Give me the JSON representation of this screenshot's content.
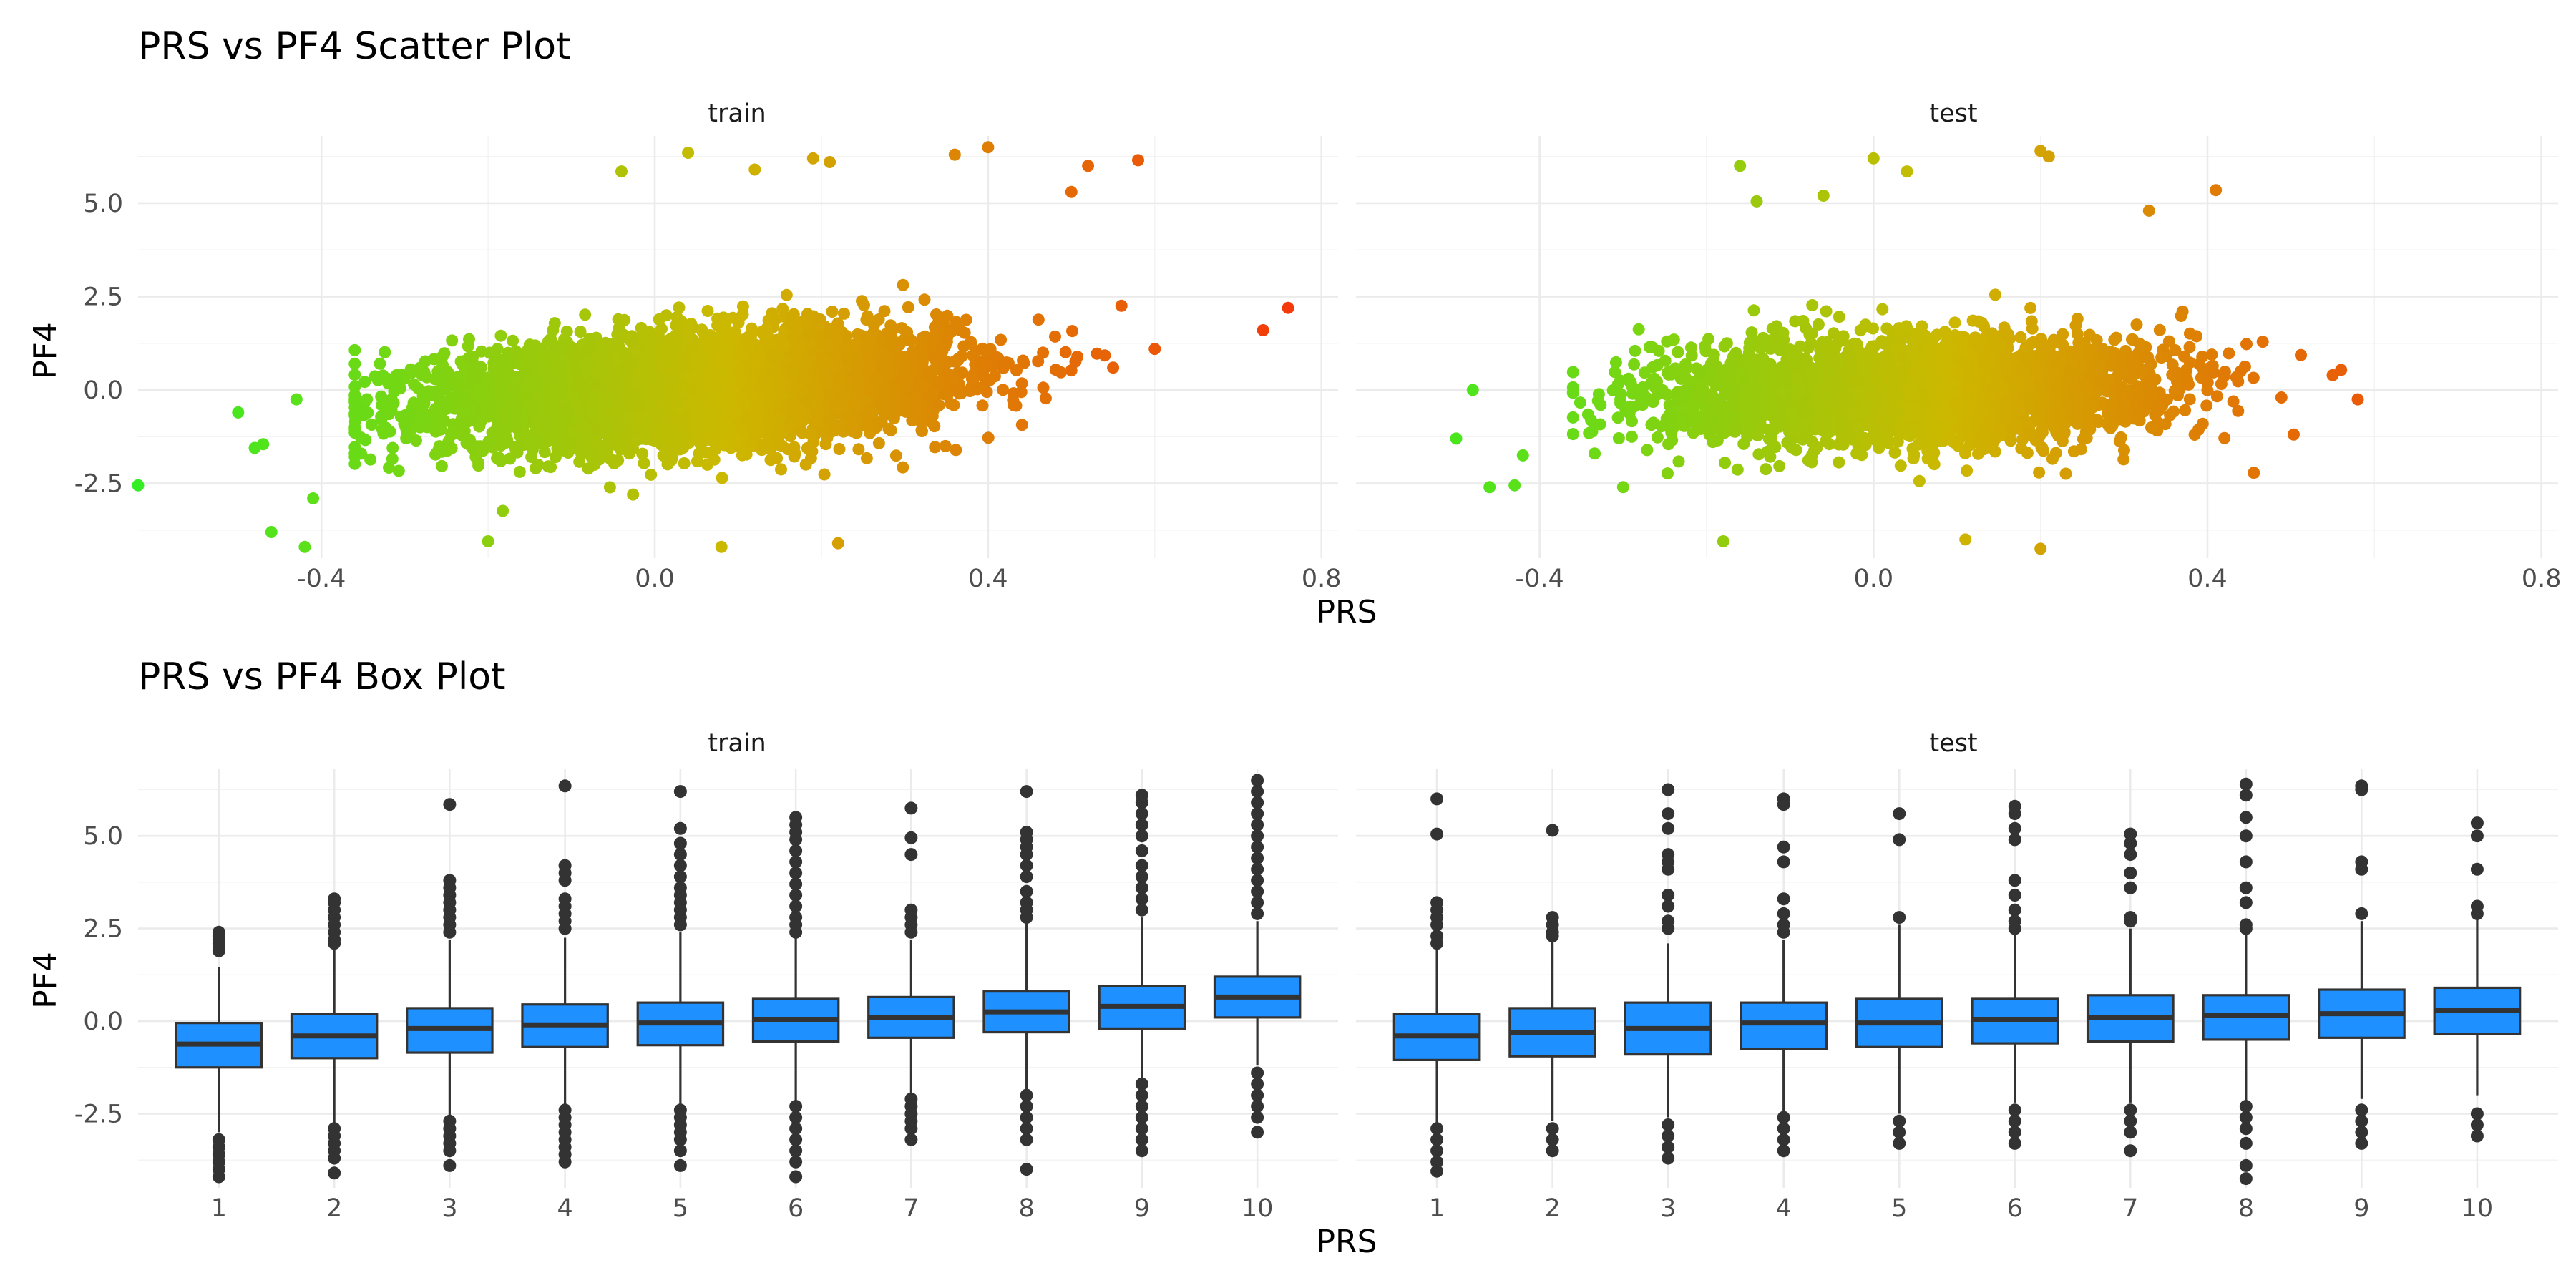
{
  "chart_data": [
    {
      "type": "scatter",
      "title": "PRS vs PF4 Scatter Plot",
      "xlabel": "PRS",
      "ylabel": "PF4",
      "facets": [
        "train",
        "test"
      ],
      "xlim": [
        -0.62,
        0.82
      ],
      "ylim": [
        -4.5,
        6.8
      ],
      "x_ticks": [
        "-0.4",
        "0.0",
        "0.4",
        "0.8"
      ],
      "y_ticks": [
        "-2.5",
        "0.0",
        "2.5",
        "5.0"
      ],
      "color_gradient": [
        "#33ee22",
        "#cdb800",
        "#f5350a"
      ],
      "grid": true,
      "legend": "none",
      "series": [
        {
          "facet": "train",
          "cloud": {
            "x_mean": 0.05,
            "x_sd": 0.15,
            "y_intercept": 0.05,
            "y_slope": 1.6,
            "y_sd": 0.95,
            "n": 5200
          },
          "extreme_points": [
            [
              -0.62,
              -2.55
            ],
            [
              -0.5,
              -0.6
            ],
            [
              -0.48,
              -1.55
            ],
            [
              -0.47,
              -1.45
            ],
            [
              -0.46,
              -3.8
            ],
            [
              -0.43,
              -0.25
            ],
            [
              -0.42,
              -4.2
            ],
            [
              -0.41,
              -2.9
            ],
            [
              0.76,
              2.2
            ],
            [
              0.73,
              1.6
            ],
            [
              0.6,
              1.1
            ],
            [
              0.58,
              6.15
            ],
            [
              0.52,
              6.0
            ],
            [
              0.5,
              5.3
            ],
            [
              0.4,
              6.5
            ],
            [
              0.36,
              6.3
            ],
            [
              -0.04,
              5.85
            ],
            [
              0.04,
              6.35
            ],
            [
              0.19,
              6.2
            ],
            [
              0.21,
              6.1
            ],
            [
              0.12,
              5.9
            ],
            [
              0.55,
              0.6
            ],
            [
              0.08,
              -4.2
            ],
            [
              0.22,
              -4.1
            ],
            [
              -0.2,
              -4.05
            ]
          ]
        },
        {
          "facet": "test",
          "cloud": {
            "x_mean": 0.05,
            "x_sd": 0.15,
            "y_intercept": 0.0,
            "y_slope": 0.5,
            "y_sd": 0.95,
            "n": 3000
          },
          "extreme_points": [
            [
              -0.5,
              -1.3
            ],
            [
              -0.48,
              0.0
            ],
            [
              -0.46,
              -2.6
            ],
            [
              -0.43,
              -2.55
            ],
            [
              -0.42,
              -1.75
            ],
            [
              -0.16,
              6.0
            ],
            [
              -0.14,
              5.05
            ],
            [
              0.2,
              6.4
            ],
            [
              0.21,
              6.25
            ],
            [
              0.0,
              6.2
            ],
            [
              0.41,
              5.35
            ],
            [
              0.58,
              -0.25
            ],
            [
              0.55,
              0.4
            ],
            [
              0.04,
              5.85
            ],
            [
              -0.06,
              5.2
            ],
            [
              0.2,
              -4.25
            ],
            [
              -0.18,
              -4.05
            ],
            [
              -0.3,
              -2.6
            ],
            [
              0.33,
              4.8
            ],
            [
              0.11,
              -4.0
            ]
          ]
        }
      ]
    },
    {
      "type": "box",
      "title": "PRS vs PF4 Box Plot",
      "xlabel": "PRS",
      "ylabel": "PF4",
      "facets": [
        "train",
        "test"
      ],
      "categories": [
        "1",
        "2",
        "3",
        "4",
        "5",
        "6",
        "7",
        "8",
        "9",
        "10"
      ],
      "ylim": [
        -4.5,
        6.8
      ],
      "y_ticks": [
        "-2.5",
        "0.0",
        "2.5",
        "5.0"
      ],
      "box_color": "#1e90ff",
      "series": [
        {
          "facet": "train",
          "boxes": [
            {
              "lower": -1.3,
              "q1": -1.25,
              "median": -0.62,
              "q3": -0.05,
              "upper": 1.45,
              "whisker_low": -3.0,
              "outliers": [
                2.4,
                2.3,
                2.2,
                2.1,
                2.0,
                1.9,
                -3.2,
                -3.4,
                -3.6,
                -3.8,
                -4.0,
                -4.2
              ]
            },
            {
              "q1": -1.0,
              "median": -0.4,
              "q3": 0.2,
              "upper": 1.95,
              "whisker_low": -2.8,
              "outliers": [
                3.3,
                3.2,
                3.0,
                2.8,
                2.6,
                2.4,
                2.2,
                2.1,
                -2.9,
                -3.1,
                -3.3,
                -3.5,
                -3.7,
                -4.1
              ]
            },
            {
              "q1": -0.85,
              "median": -0.2,
              "q3": 0.35,
              "upper": 2.2,
              "whisker_low": -2.6,
              "outliers": [
                5.85,
                3.8,
                3.6,
                3.4,
                3.2,
                3.0,
                2.8,
                2.6,
                2.4,
                -2.7,
                -2.9,
                -3.1,
                -3.3,
                -3.5,
                -3.9
              ]
            },
            {
              "q1": -0.7,
              "median": -0.1,
              "q3": 0.45,
              "upper": 2.25,
              "whisker_low": -2.3,
              "outliers": [
                6.35,
                4.2,
                4.0,
                3.8,
                3.3,
                3.1,
                2.9,
                2.7,
                2.5,
                -2.4,
                -2.6,
                -2.8,
                -3.0,
                -3.2,
                -3.4,
                -3.6,
                -3.8
              ]
            },
            {
              "q1": -0.65,
              "median": -0.05,
              "q3": 0.5,
              "upper": 2.4,
              "whisker_low": -2.3,
              "outliers": [
                6.2,
                5.2,
                4.8,
                4.5,
                4.2,
                3.9,
                3.6,
                3.4,
                3.2,
                3.0,
                2.8,
                2.6,
                -2.4,
                -2.6,
                -2.8,
                -3.0,
                -3.2,
                -3.5,
                -3.9
              ]
            },
            {
              "q1": -0.55,
              "median": 0.05,
              "q3": 0.6,
              "upper": 2.3,
              "whisker_low": -2.2,
              "outliers": [
                5.5,
                5.3,
                5.1,
                4.9,
                4.6,
                4.3,
                4.0,
                3.7,
                3.4,
                3.1,
                2.8,
                2.6,
                2.4,
                -2.3,
                -2.6,
                -2.9,
                -3.2,
                -3.5,
                -3.8,
                -4.2
              ]
            },
            {
              "q1": -0.45,
              "median": 0.1,
              "q3": 0.65,
              "upper": 2.2,
              "whisker_low": -2.0,
              "outliers": [
                5.75,
                4.95,
                4.5,
                3.0,
                2.8,
                2.6,
                2.4,
                -2.1,
                -2.3,
                -2.5,
                -2.7,
                -2.9,
                -3.2
              ]
            },
            {
              "q1": -0.3,
              "median": 0.25,
              "q3": 0.8,
              "upper": 2.7,
              "whisker_low": -1.95,
              "outliers": [
                6.2,
                5.1,
                4.9,
                4.7,
                4.5,
                4.2,
                3.9,
                3.5,
                3.2,
                3.0,
                2.8,
                -2.0,
                -2.3,
                -2.6,
                -2.9,
                -3.2,
                -4.0
              ]
            },
            {
              "q1": -0.2,
              "median": 0.4,
              "q3": 0.95,
              "upper": 2.8,
              "whisker_low": -1.6,
              "outliers": [
                6.1,
                5.9,
                5.6,
                5.3,
                5.0,
                4.6,
                4.2,
                3.9,
                3.6,
                3.3,
                3.0,
                -1.7,
                -2.0,
                -2.3,
                -2.6,
                -2.9,
                -3.2,
                -3.5
              ]
            },
            {
              "q1": 0.1,
              "median": 0.65,
              "q3": 1.2,
              "upper": 2.7,
              "whisker_low": -1.2,
              "outliers": [
                6.5,
                6.2,
                5.9,
                5.6,
                5.3,
                5.0,
                4.7,
                4.4,
                4.1,
                3.8,
                3.5,
                3.2,
                2.9,
                -1.4,
                -1.7,
                -2.0,
                -2.3,
                -2.6,
                -3.0
              ]
            }
          ]
        },
        {
          "facet": "test",
          "boxes": [
            {
              "q1": -1.05,
              "median": -0.4,
              "q3": 0.2,
              "upper": 2.0,
              "whisker_low": -2.8,
              "outliers": [
                6.0,
                5.05,
                3.2,
                3.0,
                2.8,
                2.6,
                2.3,
                2.1,
                -2.9,
                -3.2,
                -3.5,
                -3.8,
                -4.05
              ]
            },
            {
              "q1": -0.95,
              "median": -0.3,
              "q3": 0.35,
              "upper": 2.2,
              "whisker_low": -2.7,
              "outliers": [
                5.15,
                2.8,
                2.6,
                2.4,
                2.3,
                -2.9,
                -3.2,
                -3.5
              ]
            },
            {
              "q1": -0.9,
              "median": -0.2,
              "q3": 0.5,
              "upper": 2.1,
              "whisker_low": -2.6,
              "outliers": [
                6.25,
                5.6,
                5.2,
                4.5,
                4.3,
                4.1,
                3.4,
                3.1,
                2.7,
                2.5,
                -2.8,
                -3.1,
                -3.4,
                -3.7
              ]
            },
            {
              "q1": -0.75,
              "median": -0.05,
              "q3": 0.5,
              "upper": 2.2,
              "whisker_low": -2.5,
              "outliers": [
                6.0,
                5.85,
                4.7,
                4.3,
                3.3,
                2.9,
                2.6,
                2.4,
                -2.6,
                -2.9,
                -3.2,
                -3.5
              ]
            },
            {
              "q1": -0.7,
              "median": -0.05,
              "q3": 0.6,
              "upper": 2.6,
              "whisker_low": -2.5,
              "outliers": [
                5.6,
                4.9,
                2.8,
                -2.7,
                -3.0,
                -3.3
              ]
            },
            {
              "q1": -0.6,
              "median": 0.05,
              "q3": 0.6,
              "upper": 2.4,
              "whisker_low": -2.2,
              "outliers": [
                5.8,
                5.6,
                5.2,
                4.9,
                3.8,
                3.4,
                3.0,
                2.7,
                2.5,
                -2.4,
                -2.7,
                -3.0,
                -3.3
              ]
            },
            {
              "q1": -0.55,
              "median": 0.1,
              "q3": 0.7,
              "upper": 2.5,
              "whisker_low": -2.2,
              "outliers": [
                5.05,
                4.8,
                4.5,
                4.0,
                3.6,
                2.8,
                2.7,
                -2.4,
                -2.7,
                -3.0,
                -3.5
              ]
            },
            {
              "q1": -0.5,
              "median": 0.15,
              "q3": 0.7,
              "upper": 2.4,
              "whisker_low": -2.2,
              "outliers": [
                6.4,
                6.1,
                5.5,
                5.0,
                4.3,
                3.6,
                3.2,
                2.6,
                2.5,
                -2.3,
                -2.6,
                -2.9,
                -3.3,
                -3.9,
                -4.25
              ]
            },
            {
              "q1": -0.45,
              "median": 0.2,
              "q3": 0.85,
              "upper": 2.7,
              "whisker_low": -2.1,
              "outliers": [
                6.35,
                6.25,
                4.3,
                4.1,
                2.9,
                -2.4,
                -2.7,
                -3.0,
                -3.3
              ]
            },
            {
              "q1": -0.35,
              "median": 0.3,
              "q3": 0.9,
              "upper": 2.9,
              "whisker_low": -2.0,
              "outliers": [
                5.35,
                5.0,
                4.1,
                3.1,
                2.9,
                -2.5,
                -2.8,
                -3.1
              ]
            }
          ]
        }
      ]
    }
  ]
}
